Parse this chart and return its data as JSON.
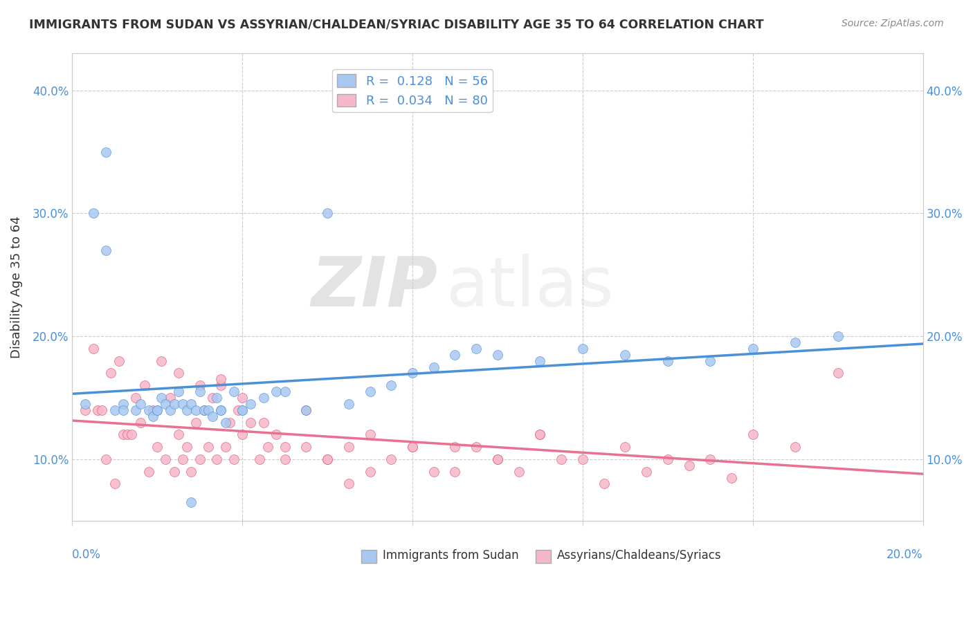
{
  "title": "IMMIGRANTS FROM SUDAN VS ASSYRIAN/CHALDEAN/SYRIAC DISABILITY AGE 35 TO 64 CORRELATION CHART",
  "source": "Source: ZipAtlas.com",
  "ylabel": "Disability Age 35 to 64",
  "xlim": [
    0.0,
    0.2
  ],
  "ylim": [
    0.05,
    0.43
  ],
  "yticks": [
    0.1,
    0.2,
    0.3,
    0.4
  ],
  "ytick_labels": [
    "10.0%",
    "20.0%",
    "30.0%",
    "40.0%"
  ],
  "xticks": [
    0.0,
    0.04,
    0.08,
    0.12,
    0.16,
    0.2
  ],
  "legend_r1": "R =  0.128",
  "legend_n1": "N = 56",
  "legend_r2": "R =  0.034",
  "legend_n2": "N = 80",
  "color_blue": "#a8c8f0",
  "color_blue_dark": "#4a90d9",
  "color_pink": "#f5b8c8",
  "color_pink_dark": "#e05070",
  "color_blue_line": "#4a90d9",
  "color_pink_line": "#e87090",
  "watermark_zip": "ZIP",
  "watermark_atlas": "atlas",
  "sudan_x": [
    0.003,
    0.005,
    0.008,
    0.01,
    0.012,
    0.015,
    0.016,
    0.018,
    0.019,
    0.02,
    0.021,
    0.022,
    0.023,
    0.024,
    0.025,
    0.026,
    0.027,
    0.028,
    0.029,
    0.03,
    0.031,
    0.032,
    0.033,
    0.034,
    0.035,
    0.036,
    0.038,
    0.04,
    0.042,
    0.045,
    0.048,
    0.05,
    0.055,
    0.06,
    0.065,
    0.07,
    0.075,
    0.08,
    0.085,
    0.09,
    0.095,
    0.1,
    0.11,
    0.12,
    0.13,
    0.14,
    0.15,
    0.16,
    0.17,
    0.18,
    0.008,
    0.012,
    0.02,
    0.028,
    0.035,
    0.04
  ],
  "sudan_y": [
    0.145,
    0.3,
    0.27,
    0.14,
    0.145,
    0.14,
    0.145,
    0.14,
    0.135,
    0.14,
    0.15,
    0.145,
    0.14,
    0.145,
    0.155,
    0.145,
    0.14,
    0.145,
    0.14,
    0.155,
    0.14,
    0.14,
    0.135,
    0.15,
    0.14,
    0.13,
    0.155,
    0.14,
    0.145,
    0.15,
    0.155,
    0.155,
    0.14,
    0.3,
    0.145,
    0.155,
    0.16,
    0.17,
    0.175,
    0.185,
    0.19,
    0.185,
    0.18,
    0.19,
    0.185,
    0.18,
    0.18,
    0.19,
    0.195,
    0.2,
    0.35,
    0.14,
    0.14,
    0.065,
    0.14,
    0.14
  ],
  "assyrian_x": [
    0.003,
    0.005,
    0.006,
    0.007,
    0.008,
    0.009,
    0.01,
    0.011,
    0.012,
    0.013,
    0.014,
    0.015,
    0.016,
    0.017,
    0.018,
    0.019,
    0.02,
    0.021,
    0.022,
    0.023,
    0.024,
    0.025,
    0.026,
    0.027,
    0.028,
    0.029,
    0.03,
    0.031,
    0.032,
    0.033,
    0.034,
    0.035,
    0.036,
    0.037,
    0.038,
    0.039,
    0.04,
    0.042,
    0.044,
    0.046,
    0.048,
    0.05,
    0.055,
    0.06,
    0.065,
    0.07,
    0.08,
    0.09,
    0.1,
    0.11,
    0.12,
    0.13,
    0.14,
    0.15,
    0.16,
    0.17,
    0.18,
    0.03,
    0.04,
    0.05,
    0.06,
    0.07,
    0.08,
    0.09,
    0.1,
    0.11,
    0.025,
    0.035,
    0.045,
    0.055,
    0.065,
    0.075,
    0.085,
    0.095,
    0.105,
    0.115,
    0.125,
    0.135,
    0.145,
    0.155
  ],
  "assyrian_y": [
    0.14,
    0.19,
    0.14,
    0.14,
    0.1,
    0.17,
    0.08,
    0.18,
    0.12,
    0.12,
    0.12,
    0.15,
    0.13,
    0.16,
    0.09,
    0.14,
    0.11,
    0.18,
    0.1,
    0.15,
    0.09,
    0.12,
    0.1,
    0.11,
    0.09,
    0.13,
    0.1,
    0.14,
    0.11,
    0.15,
    0.1,
    0.16,
    0.11,
    0.13,
    0.1,
    0.14,
    0.12,
    0.13,
    0.1,
    0.11,
    0.12,
    0.1,
    0.11,
    0.1,
    0.11,
    0.12,
    0.11,
    0.11,
    0.1,
    0.12,
    0.1,
    0.11,
    0.1,
    0.1,
    0.12,
    0.11,
    0.17,
    0.16,
    0.15,
    0.11,
    0.1,
    0.09,
    0.11,
    0.09,
    0.1,
    0.12,
    0.17,
    0.165,
    0.13,
    0.14,
    0.08,
    0.1,
    0.09,
    0.11,
    0.09,
    0.1,
    0.08,
    0.09,
    0.095,
    0.085
  ]
}
